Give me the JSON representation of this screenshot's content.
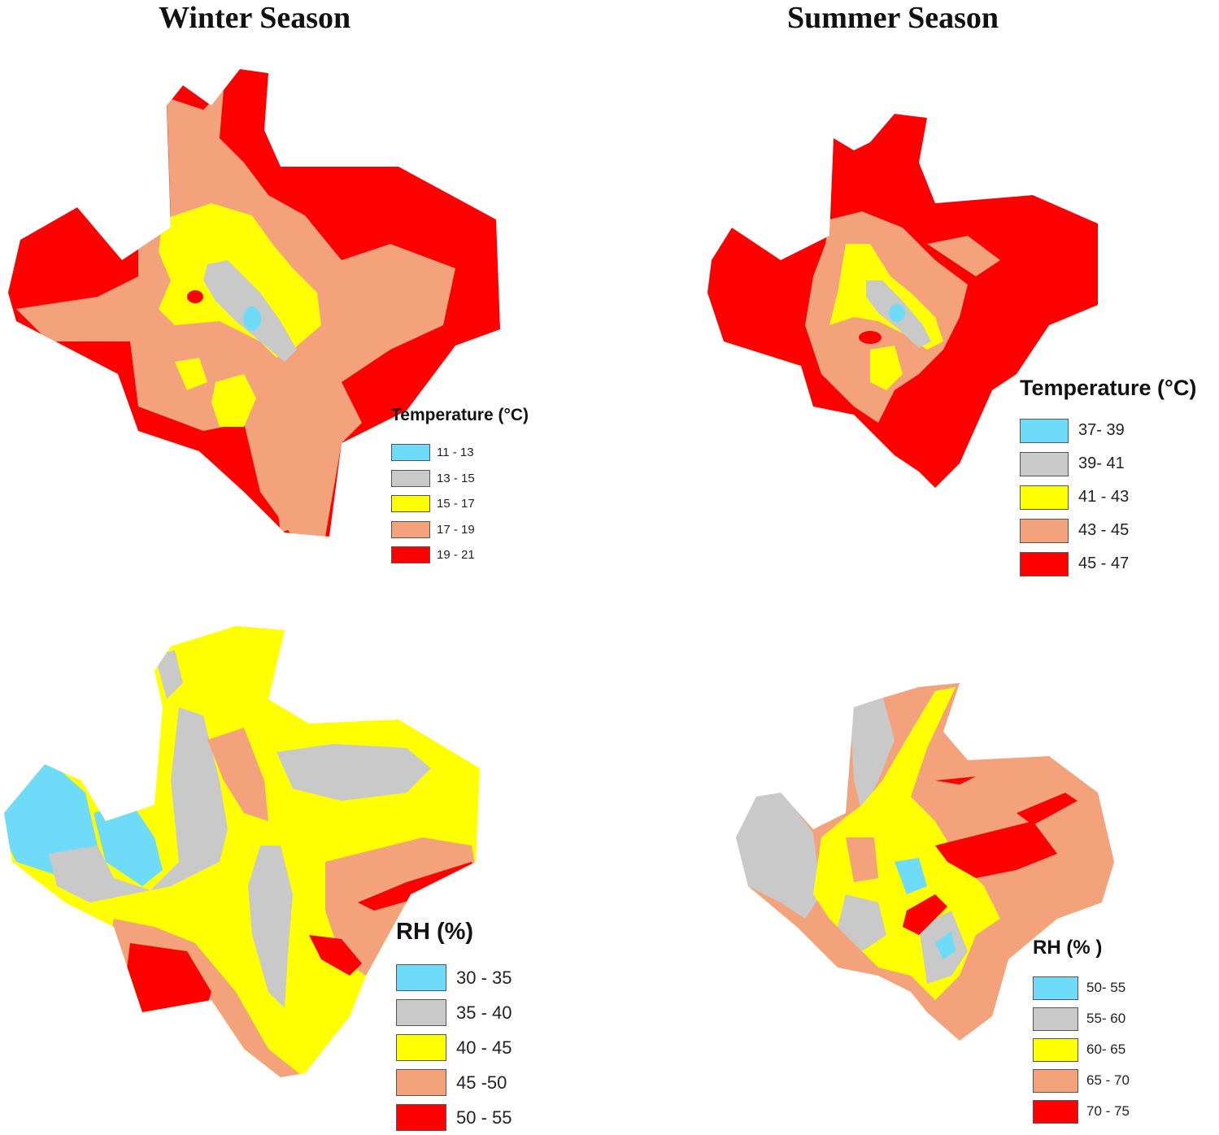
{
  "columns": {
    "winter": "Winter Season",
    "summer": "Summer Season"
  },
  "colors": {
    "class1": "#6edcf8",
    "class2": "#c9c9c9",
    "class3": "#ffff00",
    "class4": "#f3a27c",
    "class5": "#ff0000"
  },
  "legends": {
    "winter_temp": {
      "title": "Temperature (°C)",
      "items": [
        "11 - 13",
        "13 - 15",
        "15 - 17",
        "17 - 19",
        "19 - 21"
      ]
    },
    "summer_temp": {
      "title": "Temperature (°C)",
      "items": [
        "37- 39",
        "39- 41",
        "41 - 43",
        "43 - 45",
        "45 - 47"
      ]
    },
    "winter_rh": {
      "title": "RH (%)",
      "items": [
        "30 - 35",
        "35 - 40",
        "40 - 45",
        "45 -50",
        "50 - 55"
      ]
    },
    "summer_rh": {
      "title": "RH (% )",
      "items": [
        "50- 55",
        "55- 60",
        "60- 65",
        "65 - 70",
        "70 - 75"
      ]
    }
  }
}
